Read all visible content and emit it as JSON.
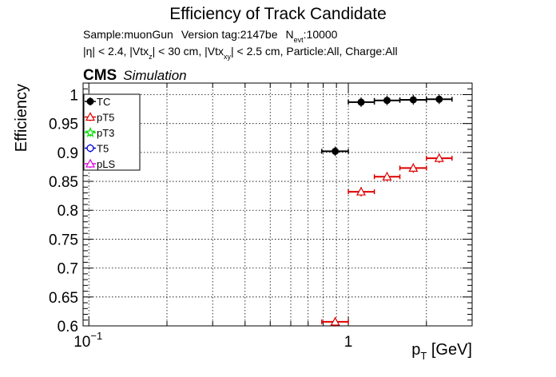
{
  "chart_data": {
    "type": "scatter",
    "title": "Efficiency of Track Candidate",
    "info_line1": {
      "sample": "Sample:muonGun",
      "version": "Version tag:2147be",
      "nevt_prefix": "N",
      "nevt_sub": "evt",
      "nevt_value": ":10000"
    },
    "info_line2": {
      "p1": "|η| < 2.4, |Vtx",
      "p1_sub": "z",
      "p2": "| < 30 cm, |Vtx",
      "p2_sub": "xy",
      "p3": "| < 2.5 cm, Particle:All, Charge:All"
    },
    "cms_label": "CMS",
    "simulation_label": "Simulation",
    "xlabel_main": "p",
    "xlabel_sub": "T",
    "xlabel_unit": " [GeV]",
    "ylabel": "Efficiency",
    "x_scale": "log",
    "xlim": [
      0.095,
      3.0
    ],
    "ylim": [
      0.6,
      1.02
    ],
    "grid": true,
    "legend_position": "top-left",
    "x_ticks": [
      {
        "label_base": "10",
        "label_exp": "−1",
        "value": 0.1
      },
      {
        "label": "1",
        "value": 1
      }
    ],
    "y_ticks": [
      {
        "label": "0.6",
        "value": 0.6
      },
      {
        "label": "0.65",
        "value": 0.65
      },
      {
        "label": "0.7",
        "value": 0.7
      },
      {
        "label": "0.75",
        "value": 0.75
      },
      {
        "label": "0.8",
        "value": 0.8
      },
      {
        "label": "0.85",
        "value": 0.85
      },
      {
        "label": "0.9",
        "value": 0.9
      },
      {
        "label": "0.95",
        "value": 0.95
      },
      {
        "label": "1",
        "value": 1.0
      }
    ],
    "series": [
      {
        "name": "TC",
        "color": "#000000",
        "marker": "filled-circle",
        "points": [
          {
            "x": 0.89,
            "xlo": 0.79,
            "xhi": 1.0,
            "y": 0.902
          },
          {
            "x": 1.12,
            "xlo": 1.0,
            "xhi": 1.26,
            "y": 0.987
          },
          {
            "x": 1.41,
            "xlo": 1.26,
            "xhi": 1.58,
            "y": 0.99
          },
          {
            "x": 1.78,
            "xlo": 1.58,
            "xhi": 2.0,
            "y": 0.991
          },
          {
            "x": 2.24,
            "xlo": 2.0,
            "xhi": 2.51,
            "y": 0.992
          }
        ]
      },
      {
        "name": "pT5",
        "color": "#dd0000",
        "marker": "open-triangle",
        "points": [
          {
            "x": 0.89,
            "xlo": 0.79,
            "xhi": 1.0,
            "y": 0.607
          },
          {
            "x": 1.12,
            "xlo": 1.0,
            "xhi": 1.26,
            "y": 0.832
          },
          {
            "x": 1.41,
            "xlo": 1.26,
            "xhi": 1.58,
            "y": 0.858
          },
          {
            "x": 1.78,
            "xlo": 1.58,
            "xhi": 2.0,
            "y": 0.873
          },
          {
            "x": 2.24,
            "xlo": 2.0,
            "xhi": 2.51,
            "y": 0.89
          }
        ]
      },
      {
        "name": "pT3",
        "color": "#00dd00",
        "marker": "open-star",
        "points": []
      },
      {
        "name": "T5",
        "color": "#0000dd",
        "marker": "open-circle",
        "points": []
      },
      {
        "name": "pLS",
        "color": "#dd00dd",
        "marker": "open-triangle",
        "points": []
      }
    ]
  }
}
